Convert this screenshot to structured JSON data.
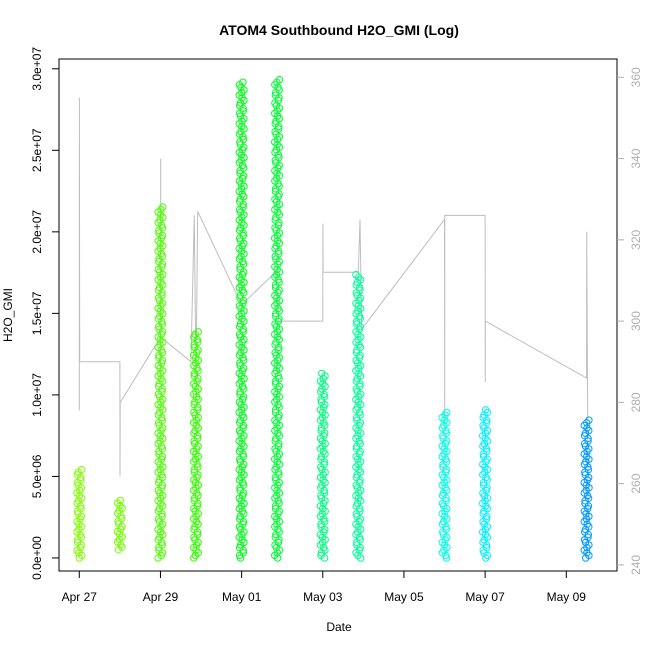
{
  "chart_data": {
    "type": "scatter",
    "title": "ATOM4 Southbound H2O_GMI (Log)",
    "xlabel": "Date",
    "ylabel": "H2O_GMI",
    "x_ticks": [
      "Apr 27",
      "Apr 29",
      "May 01",
      "May 03",
      "May 05",
      "May 07",
      "May 09"
    ],
    "xlim": [
      "2018-04-26T12:00",
      "2018-05-10T06:00"
    ],
    "y_ticks": [
      "0.0e+00",
      "5.0e+06",
      "1.0e+07",
      "1.5e+07",
      "2.0e+07",
      "2.5e+07",
      "3.0e+07"
    ],
    "ylim": [
      -800000,
      30600000
    ],
    "y2_ticks": [
      "240",
      "260",
      "280",
      "300",
      "320",
      "340",
      "360"
    ],
    "y2lim": [
      238.5,
      364.5
    ],
    "grid": false,
    "series": [
      {
        "marker": "open-circle",
        "color_scale": "time (green to blue)",
        "clusters": [
          {
            "date": "2018-04-27T00:00",
            "ymin": 0,
            "ymax": 5500000,
            "color": "#80ff00"
          },
          {
            "date": "2018-04-28T00:00",
            "ymin": 500000,
            "ymax": 3500000,
            "color": "#73ff00"
          },
          {
            "date": "2018-04-29T00:00",
            "ymin": 0,
            "ymax": 21500000,
            "color": "#4dff00"
          },
          {
            "date": "2018-04-29T21:00",
            "ymin": 0,
            "ymax": 14000000,
            "color": "#33ff00"
          },
          {
            "date": "2018-05-01T00:00",
            "ymin": 0,
            "ymax": 29300000,
            "color": "#00ff1a"
          },
          {
            "date": "2018-05-01T21:00",
            "ymin": 0,
            "ymax": 29400000,
            "color": "#00ff33"
          },
          {
            "date": "2018-05-03T00:00",
            "ymin": 0,
            "ymax": 11300000,
            "color": "#00ff80"
          },
          {
            "date": "2018-05-03T21:00",
            "ymin": 0,
            "ymax": 17400000,
            "color": "#00ff99"
          },
          {
            "date": "2018-05-06T00:00",
            "ymin": 0,
            "ymax": 9000000,
            "color": "#00ffe6"
          },
          {
            "date": "2018-05-07T00:00",
            "ymin": 0,
            "ymax": 9200000,
            "color": "#00f2ff"
          },
          {
            "date": "2018-05-09T12:00",
            "ymin": 0,
            "ymax": 8500000,
            "color": "#0099ff"
          }
        ]
      },
      {
        "axis": "right",
        "line_color": "#bebebe",
        "points": [
          [
            "2018-04-27T00:00",
            278
          ],
          [
            "2018-04-27T00:05",
            355
          ],
          [
            "2018-04-27T00:15",
            290
          ],
          [
            "2018-04-28T00:00",
            290
          ],
          [
            "2018-04-28T00:05",
            262
          ],
          [
            "2018-04-28T00:10",
            280
          ],
          [
            "2018-04-29T00:00",
            296
          ],
          [
            "2018-04-29T00:05",
            286
          ],
          [
            "2018-04-29T00:08",
            340
          ],
          [
            "2018-04-29T00:12",
            296
          ],
          [
            "2018-04-29T18:00",
            290
          ],
          [
            "2018-04-29T20:00",
            326
          ],
          [
            "2018-04-29T21:00",
            285
          ],
          [
            "2018-04-29T22:00",
            327
          ],
          [
            "2018-05-01T00:00",
            304
          ],
          [
            "2018-05-01T20:00",
            312
          ],
          [
            "2018-05-01T21:00",
            308
          ],
          [
            "2018-05-01T22:00",
            300
          ],
          [
            "2018-05-03T00:00",
            300
          ],
          [
            "2018-05-03T00:05",
            324
          ],
          [
            "2018-05-03T00:10",
            312
          ],
          [
            "2018-05-03T21:00",
            312
          ],
          [
            "2018-05-03T22:00",
            325
          ],
          [
            "2018-05-03T23:00",
            298
          ],
          [
            "2018-05-06T00:00",
            325
          ],
          [
            "2018-05-06T00:05",
            275
          ],
          [
            "2018-05-06T00:10",
            326
          ],
          [
            "2018-05-07T00:00",
            326
          ],
          [
            "2018-05-07T00:05",
            285
          ],
          [
            "2018-05-07T00:10",
            300
          ],
          [
            "2018-05-09T12:00",
            286
          ],
          [
            "2018-05-09T12:05",
            322
          ],
          [
            "2018-05-09T13:00",
            250
          ]
        ]
      }
    ]
  }
}
